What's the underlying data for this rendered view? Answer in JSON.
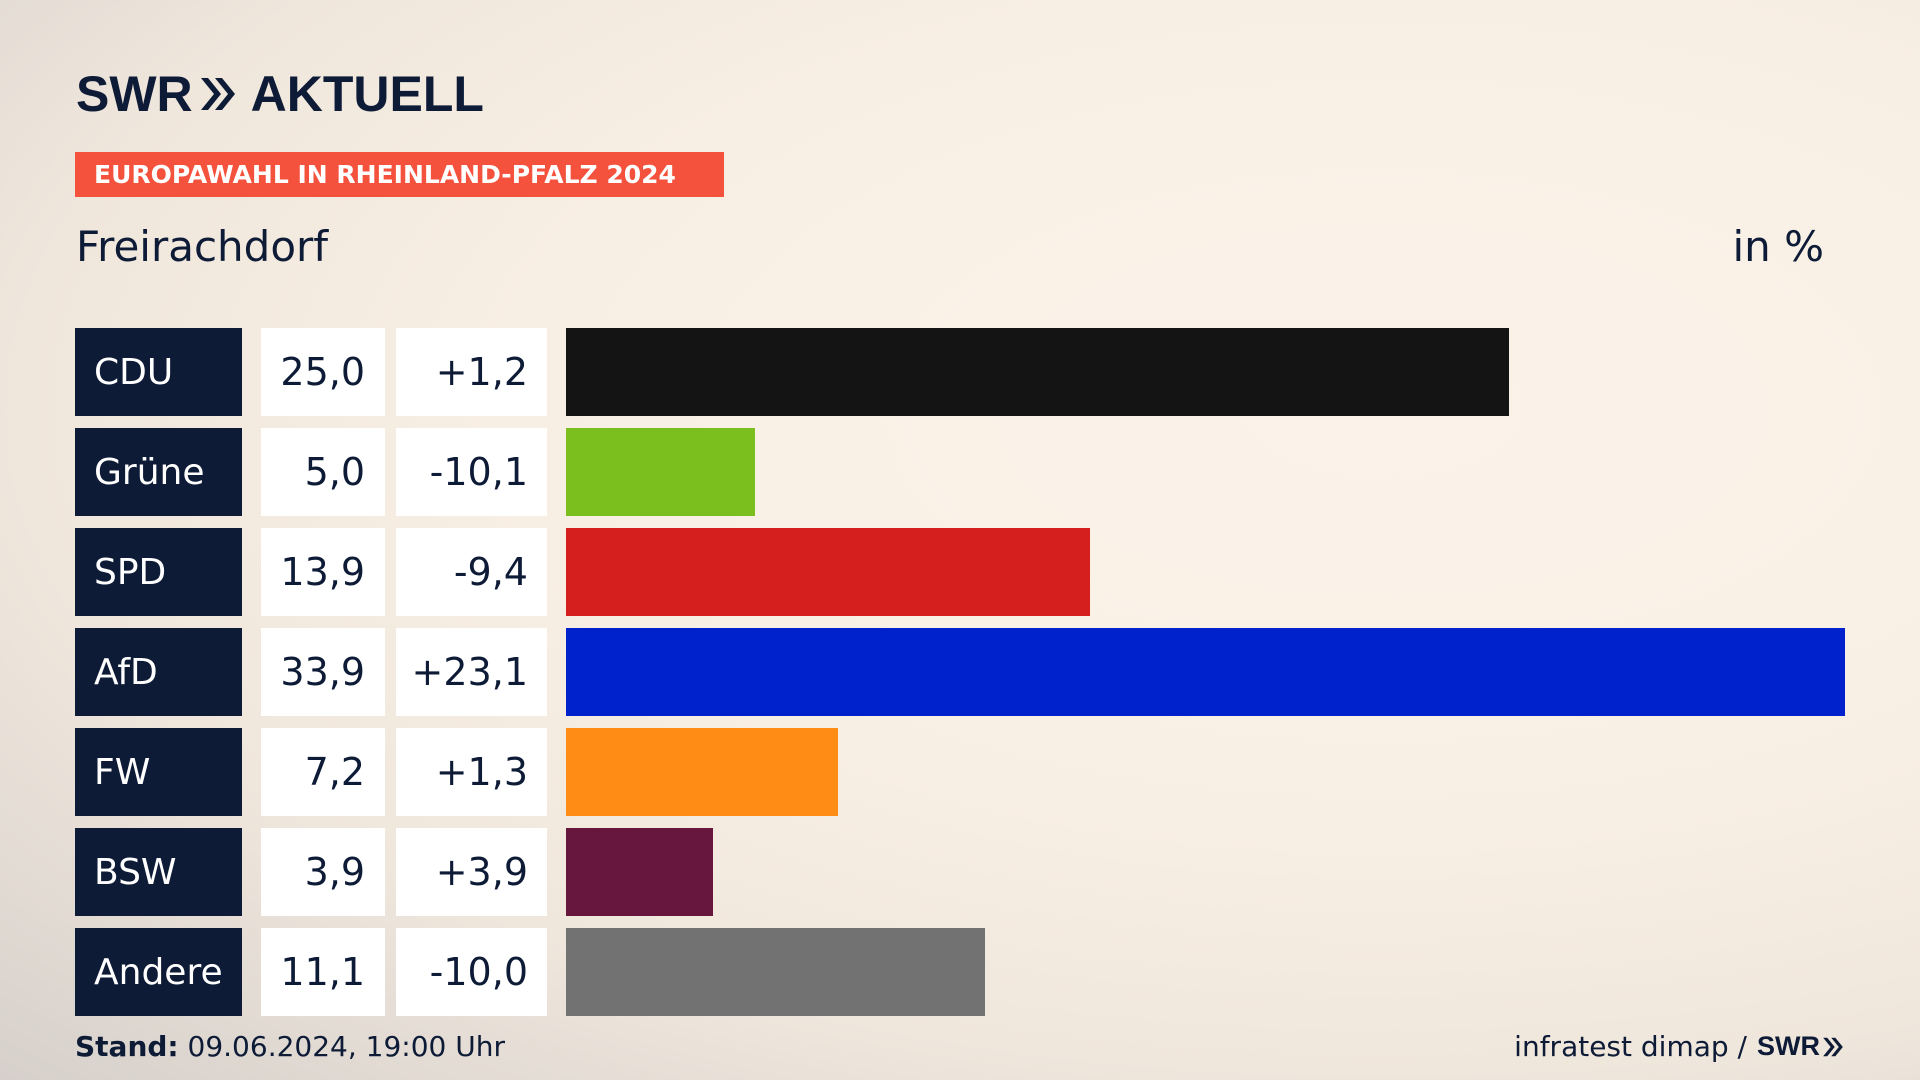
{
  "brand": {
    "swr": "SWR",
    "aktuell": "AKTUELL"
  },
  "banner": "EUROPAWAHL IN RHEINLAND-PFALZ 2024",
  "subtitle": "Freirachdorf",
  "unit": "in %",
  "colors": {
    "navy": "#0d1b36",
    "banner": "#f5523e"
  },
  "chart_data": {
    "type": "bar",
    "orientation": "horizontal",
    "xlim": [
      0,
      33.9
    ],
    "categories": [
      "CDU",
      "Grüne",
      "SPD",
      "AfD",
      "FW",
      "BSW",
      "Andere"
    ],
    "values": [
      25.0,
      5.0,
      13.9,
      33.9,
      7.2,
      3.9,
      11.1
    ],
    "rows": [
      {
        "party": "CDU",
        "value": 25.0,
        "value_label": "25,0",
        "diff_label": "+1,2",
        "color": "#141414"
      },
      {
        "party": "Grüne",
        "value": 5.0,
        "value_label": "5,0",
        "diff_label": "-10,1",
        "color": "#7bbf1e"
      },
      {
        "party": "SPD",
        "value": 13.9,
        "value_label": "13,9",
        "diff_label": "-9,4",
        "color": "#d51f1f"
      },
      {
        "party": "AfD",
        "value": 33.9,
        "value_label": "33,9",
        "diff_label": "+23,1",
        "color": "#0022cc"
      },
      {
        "party": "FW",
        "value": 7.2,
        "value_label": "7,2",
        "diff_label": "+1,3",
        "color": "#ff8c14"
      },
      {
        "party": "BSW",
        "value": 3.9,
        "value_label": "3,9",
        "diff_label": "+3,9",
        "color": "#67173d"
      },
      {
        "party": "Andere",
        "value": 11.1,
        "value_label": "11,1",
        "diff_label": "-10,0",
        "color": "#727272"
      }
    ]
  },
  "footer": {
    "stand_label": "Stand:",
    "stand_value": "09.06.2024, 19:00 Uhr",
    "source": "infratest dimap /",
    "source_brand": "SWR"
  }
}
